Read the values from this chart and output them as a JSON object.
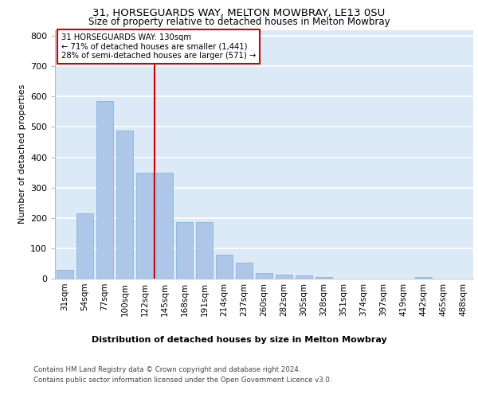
{
  "title1": "31, HORSEGUARDS WAY, MELTON MOWBRAY, LE13 0SU",
  "title2": "Size of property relative to detached houses in Melton Mowbray",
  "xlabel": "Distribution of detached houses by size in Melton Mowbray",
  "ylabel": "Number of detached properties",
  "categories": [
    "31sqm",
    "54sqm",
    "77sqm",
    "100sqm",
    "122sqm",
    "145sqm",
    "168sqm",
    "191sqm",
    "214sqm",
    "237sqm",
    "260sqm",
    "282sqm",
    "305sqm",
    "328sqm",
    "351sqm",
    "374sqm",
    "397sqm",
    "419sqm",
    "442sqm",
    "465sqm",
    "488sqm"
  ],
  "values": [
    30,
    215,
    585,
    488,
    350,
    348,
    185,
    185,
    80,
    52,
    18,
    13,
    10,
    5,
    0,
    0,
    0,
    0,
    5,
    0,
    0
  ],
  "bar_color": "#aec6e8",
  "bar_edge_color": "#7aafd4",
  "vline_color": "#cc0000",
  "annotation_line1": "31 HORSEGUARDS WAY: 130sqm",
  "annotation_line2": "← 71% of detached houses are smaller (1,441)",
  "annotation_line3": "28% of semi-detached houses are larger (571) →",
  "annotation_box_color": "#cc0000",
  "annotation_bg": "#ffffff",
  "ylim": [
    0,
    820
  ],
  "yticks": [
    0,
    100,
    200,
    300,
    400,
    500,
    600,
    700,
    800
  ],
  "background_color": "#dce9f7",
  "grid_color": "#ffffff",
  "footer1": "Contains HM Land Registry data © Crown copyright and database right 2024.",
  "footer2": "Contains public sector information licensed under the Open Government Licence v3.0."
}
